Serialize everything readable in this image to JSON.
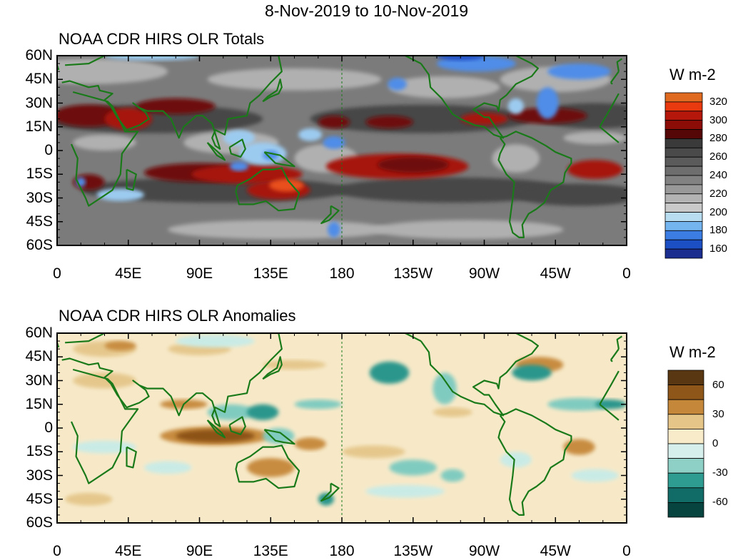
{
  "title": "8-Nov-2019 to 10-Nov-2019",
  "panels": [
    {
      "title": "NOAA CDR HIRS OLR Totals",
      "lat_labels": [
        "60N",
        "45N",
        "30N",
        "15N",
        "0",
        "15S",
        "30S",
        "45S",
        "60S"
      ],
      "lon_labels": [
        "0",
        "45E",
        "90E",
        "135E",
        "180",
        "135W",
        "90W",
        "45W",
        "0"
      ],
      "colorbar": {
        "unit": "W m-2",
        "labels": [
          "320",
          "300",
          "280",
          "260",
          "240",
          "220",
          "200",
          "180",
          "160"
        ],
        "colors": [
          "#e06a20",
          "#e83a0e",
          "#b5170b",
          "#8c0c08",
          "#550607",
          "#3a3a3a",
          "#4a4a4a",
          "#5b5b5b",
          "#6e6e6e",
          "#828282",
          "#999999",
          "#b3b3b3",
          "#c9c9c9",
          "#b8ddf0",
          "#74b4ef",
          "#3b7de3",
          "#1d4fc4",
          "#1b2d8f"
        ]
      },
      "palette": {
        "ocean_base": "#7b7b7b",
        "dark_band": "#464646",
        "light_gray": "#b0b0b0",
        "hot_dark": "#6e0a08",
        "hot": "#a6150c",
        "hottest": "#e8501a",
        "cold_light": "#9ccbf0",
        "cold": "#4f8de8",
        "cold_deep": "#2350c8"
      }
    },
    {
      "title": "NOAA CDR HIRS OLR Anomalies",
      "lat_labels": [
        "60N",
        "45N",
        "30N",
        "15N",
        "0",
        "15S",
        "30S",
        "45S",
        "60S"
      ],
      "lon_labels": [
        "0",
        "45E",
        "90E",
        "135E",
        "180",
        "135W",
        "90W",
        "45W",
        "0"
      ],
      "colorbar": {
        "unit": "W m-2",
        "labels": [
          "60",
          "30",
          "0",
          "-30",
          "-60"
        ],
        "colors": [
          "#5a3713",
          "#8e5618",
          "#c5883a",
          "#e6c688",
          "#f8ebca",
          "#d6efec",
          "#8ed0c6",
          "#2f9c92",
          "#116b66",
          "#08443f"
        ]
      },
      "palette": {
        "base": "#f7e9c8",
        "light_pos": "#e5c78c",
        "pos": "#c88c40",
        "strong_pos": "#8c5214",
        "light_neg": "#c9ebe6",
        "neg": "#80cbc0",
        "strong_neg": "#2a968c",
        "deep_neg": "#0f6a63"
      }
    }
  ],
  "coastline_color": "#1a7a1a"
}
